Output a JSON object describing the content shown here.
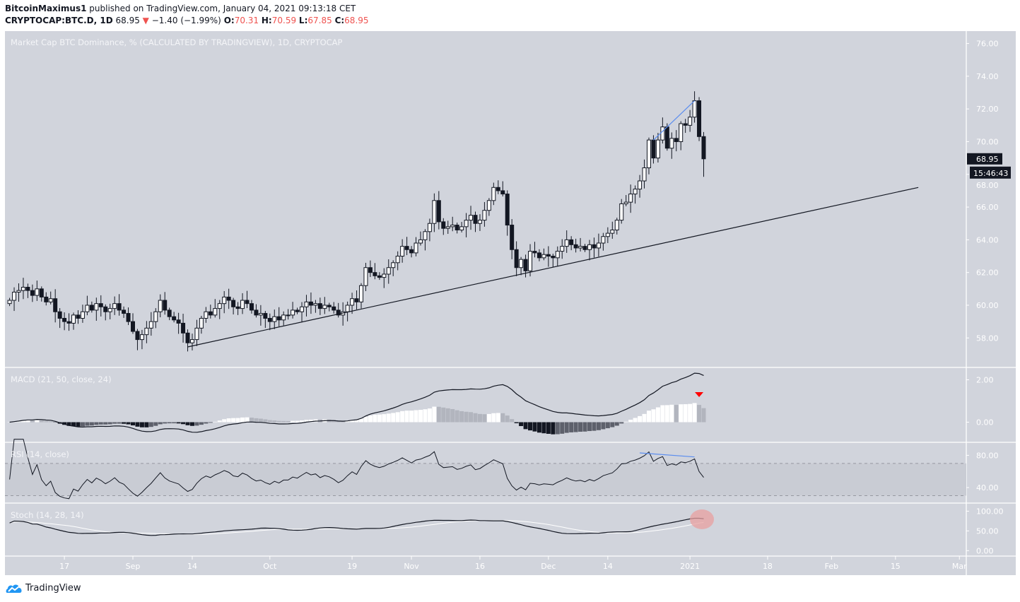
{
  "header": {
    "author": "BitcoinMaximus1",
    "published": "published on TradingView.com, January 04, 2021 09:13:18 CET",
    "symbol": "CRYPTOCAP:BTC.D, 1D",
    "last": "68.95",
    "change": "−1.40 (−1.99%)",
    "open_label": "O:",
    "open": "70.31",
    "high_label": "H:",
    "high": "70.59",
    "low_label": "L:",
    "low": "67.85",
    "close_label": "C:",
    "close": "68.95",
    "down_icon": "triangle-down-icon"
  },
  "footer": {
    "brand": "TradingView",
    "logo_icon": "tradingview-cloud-icon"
  },
  "colors": {
    "pane_bg": "#d1d4dc",
    "up": "#ffffff",
    "down": "#131722",
    "accent_blue": "#5b8def",
    "signal_red": "#ff0000",
    "highlight": "#e8a0a0",
    "price_label_bg": "#131722"
  },
  "chart_data": {
    "type": "candlestick",
    "title": "Market Cap BTC Dominance, % (CALCULATED BY TRADINGVIEW), 1D, CRYPTOCAP",
    "ylim": [
      56.5,
      76.5
    ],
    "yticks": [
      "58.00",
      "60.00",
      "62.00",
      "64.00",
      "66.00",
      "68.00",
      "70.00",
      "72.00",
      "74.00",
      "76.00"
    ],
    "last_price_label": "68.95",
    "countdown_label": "15:46:43",
    "xticks": [
      {
        "label": "17",
        "date": "2020-08-17"
      },
      {
        "label": "Sep",
        "date": "2020-09-01"
      },
      {
        "label": "14",
        "date": "2020-09-14"
      },
      {
        "label": "Oct",
        "date": "2020-10-01"
      },
      {
        "label": "19",
        "date": "2020-10-19"
      },
      {
        "label": "Nov",
        "date": "2020-11-01"
      },
      {
        "label": "16",
        "date": "2020-11-16"
      },
      {
        "label": "Dec",
        "date": "2020-12-01"
      },
      {
        "label": "14",
        "date": "2020-12-14"
      },
      {
        "label": "2021",
        "date": "2021-01-01"
      },
      {
        "label": "18",
        "date": "2021-01-18"
      },
      {
        "label": "Feb",
        "date": "2021-02-01"
      },
      {
        "label": "15",
        "date": "2021-02-15"
      },
      {
        "label": "Mar",
        "date": "2021-03-01"
      }
    ],
    "last_candle": {
      "date": "2021-01-04",
      "open": 70.31,
      "high": 70.59,
      "low": 67.85,
      "close": 68.95
    },
    "closes": [
      [
        "2020-08-05",
        60.3
      ],
      [
        "2020-08-06",
        60.8
      ],
      [
        "2020-08-07",
        60.9
      ],
      [
        "2020-08-08",
        61.1
      ],
      [
        "2020-08-09",
        60.9
      ],
      [
        "2020-08-10",
        60.6
      ],
      [
        "2020-08-11",
        61.0
      ],
      [
        "2020-08-12",
        60.5
      ],
      [
        "2020-08-13",
        60.2
      ],
      [
        "2020-08-14",
        60.4
      ],
      [
        "2020-08-15",
        59.6
      ],
      [
        "2020-08-16",
        59.2
      ],
      [
        "2020-08-17",
        59.0
      ],
      [
        "2020-08-18",
        58.9
      ],
      [
        "2020-08-19",
        59.4
      ],
      [
        "2020-08-20",
        59.2
      ],
      [
        "2020-08-21",
        59.6
      ],
      [
        "2020-08-22",
        60.0
      ],
      [
        "2020-08-23",
        59.7
      ],
      [
        "2020-08-24",
        60.1
      ],
      [
        "2020-08-25",
        59.9
      ],
      [
        "2020-08-26",
        59.6
      ],
      [
        "2020-08-27",
        59.8
      ],
      [
        "2020-08-28",
        60.1
      ],
      [
        "2020-08-29",
        59.7
      ],
      [
        "2020-08-30",
        59.5
      ],
      [
        "2020-08-31",
        59.0
      ],
      [
        "2020-09-01",
        58.4
      ],
      [
        "2020-09-02",
        57.9
      ],
      [
        "2020-09-03",
        58.2
      ],
      [
        "2020-09-04",
        58.6
      ],
      [
        "2020-09-05",
        59.0
      ],
      [
        "2020-09-06",
        59.6
      ],
      [
        "2020-09-07",
        60.3
      ],
      [
        "2020-09-08",
        59.7
      ],
      [
        "2020-09-09",
        59.3
      ],
      [
        "2020-09-10",
        59.1
      ],
      [
        "2020-09-11",
        58.9
      ],
      [
        "2020-09-12",
        58.3
      ],
      [
        "2020-09-13",
        57.7
      ],
      [
        "2020-09-14",
        57.9
      ],
      [
        "2020-09-15",
        58.6
      ],
      [
        "2020-09-16",
        59.2
      ],
      [
        "2020-09-17",
        59.6
      ],
      [
        "2020-09-18",
        59.4
      ],
      [
        "2020-09-19",
        59.8
      ],
      [
        "2020-09-20",
        60.1
      ],
      [
        "2020-09-21",
        60.5
      ],
      [
        "2020-09-22",
        60.3
      ],
      [
        "2020-09-23",
        59.9
      ],
      [
        "2020-09-24",
        59.8
      ],
      [
        "2020-09-25",
        60.3
      ],
      [
        "2020-09-26",
        60.1
      ],
      [
        "2020-09-27",
        59.7
      ],
      [
        "2020-09-28",
        59.4
      ],
      [
        "2020-09-29",
        59.5
      ],
      [
        "2020-09-30",
        59.2
      ],
      [
        "2020-10-01",
        59.0
      ],
      [
        "2020-10-02",
        59.3
      ],
      [
        "2020-10-03",
        59.1
      ],
      [
        "2020-10-04",
        59.4
      ],
      [
        "2020-10-05",
        59.4
      ],
      [
        "2020-10-06",
        59.7
      ],
      [
        "2020-10-07",
        59.6
      ],
      [
        "2020-10-08",
        59.9
      ],
      [
        "2020-10-09",
        60.2
      ],
      [
        "2020-10-10",
        60.0
      ],
      [
        "2020-10-11",
        60.1
      ],
      [
        "2020-10-12",
        59.8
      ],
      [
        "2020-10-13",
        60.0
      ],
      [
        "2020-10-14",
        59.9
      ],
      [
        "2020-10-15",
        59.7
      ],
      [
        "2020-10-16",
        59.4
      ],
      [
        "2020-10-17",
        59.6
      ],
      [
        "2020-10-18",
        60.0
      ],
      [
        "2020-10-19",
        60.4
      ],
      [
        "2020-10-20",
        60.2
      ],
      [
        "2020-10-21",
        61.2
      ],
      [
        "2020-10-22",
        62.3
      ],
      [
        "2020-10-23",
        62.0
      ],
      [
        "2020-10-24",
        61.8
      ],
      [
        "2020-10-25",
        61.7
      ],
      [
        "2020-10-26",
        61.9
      ],
      [
        "2020-10-27",
        62.3
      ],
      [
        "2020-10-28",
        62.6
      ],
      [
        "2020-10-29",
        63.0
      ],
      [
        "2020-10-30",
        63.6
      ],
      [
        "2020-10-31",
        63.4
      ],
      [
        "2020-11-01",
        63.2
      ],
      [
        "2020-11-02",
        63.8
      ],
      [
        "2020-11-03",
        64.0
      ],
      [
        "2020-11-04",
        64.5
      ],
      [
        "2020-11-05",
        65.0
      ],
      [
        "2020-11-06",
        66.4
      ],
      [
        "2020-11-07",
        65.1
      ],
      [
        "2020-11-08",
        64.7
      ],
      [
        "2020-11-09",
        64.8
      ],
      [
        "2020-11-10",
        64.9
      ],
      [
        "2020-11-11",
        64.6
      ],
      [
        "2020-11-12",
        64.8
      ],
      [
        "2020-11-13",
        65.2
      ],
      [
        "2020-11-14",
        65.5
      ],
      [
        "2020-11-15",
        65.0
      ],
      [
        "2020-11-16",
        65.2
      ],
      [
        "2020-11-17",
        65.8
      ],
      [
        "2020-11-18",
        66.4
      ],
      [
        "2020-11-19",
        67.2
      ],
      [
        "2020-11-20",
        67.0
      ],
      [
        "2020-11-21",
        66.8
      ],
      [
        "2020-11-22",
        64.9
      ],
      [
        "2020-11-23",
        63.4
      ],
      [
        "2020-11-24",
        62.3
      ],
      [
        "2020-11-25",
        62.8
      ],
      [
        "2020-11-26",
        62.1
      ],
      [
        "2020-11-27",
        63.3
      ],
      [
        "2020-11-28",
        63.2
      ],
      [
        "2020-11-29",
        62.9
      ],
      [
        "2020-11-30",
        63.1
      ],
      [
        "2020-12-01",
        63.0
      ],
      [
        "2020-12-02",
        62.9
      ],
      [
        "2020-12-03",
        63.3
      ],
      [
        "2020-12-04",
        63.6
      ],
      [
        "2020-12-05",
        64.0
      ],
      [
        "2020-12-06",
        63.7
      ],
      [
        "2020-12-07",
        63.5
      ],
      [
        "2020-12-08",
        63.6
      ],
      [
        "2020-12-09",
        63.4
      ],
      [
        "2020-12-10",
        63.7
      ],
      [
        "2020-12-11",
        63.5
      ],
      [
        "2020-12-12",
        63.8
      ],
      [
        "2020-12-13",
        64.2
      ],
      [
        "2020-12-14",
        64.4
      ],
      [
        "2020-12-15",
        64.6
      ],
      [
        "2020-12-16",
        65.2
      ],
      [
        "2020-12-17",
        66.2
      ],
      [
        "2020-12-18",
        66.3
      ],
      [
        "2020-12-19",
        66.8
      ],
      [
        "2020-12-20",
        67.1
      ],
      [
        "2020-12-21",
        67.6
      ],
      [
        "2020-12-22",
        68.4
      ],
      [
        "2020-12-23",
        70.1
      ],
      [
        "2020-12-24",
        69.0
      ],
      [
        "2020-12-25",
        70.1
      ],
      [
        "2020-12-26",
        70.9
      ],
      [
        "2020-12-27",
        69.6
      ],
      [
        "2020-12-28",
        70.2
      ],
      [
        "2020-12-29",
        70.0
      ],
      [
        "2020-12-30",
        71.1
      ],
      [
        "2020-12-31",
        71.0
      ],
      [
        "2021-01-01",
        71.5
      ],
      [
        "2021-01-02",
        72.5
      ],
      [
        "2021-01-03",
        70.31
      ],
      [
        "2021-01-04",
        68.95
      ]
    ],
    "trendlines": [
      {
        "from": [
          "2020-09-13",
          57.45
        ],
        "to": [
          "2021-02-20",
          67.2
        ],
        "color": "#131722"
      },
      {
        "from": [
          "2020-12-24",
          70.1
        ],
        "to": [
          "2021-01-02",
          72.5
        ],
        "color": "#5b8def"
      }
    ],
    "macd": {
      "title": "MACD (21, 50, close, 24)",
      "fast": 21,
      "slow": 50,
      "signal": 24,
      "ylim": [
        -0.75,
        2.35
      ],
      "yticks": [
        "0.00",
        "2.00"
      ],
      "signal_marker_date": "2021-01-03"
    },
    "rsi": {
      "title": "RSI (14, close)",
      "length": 14,
      "ylim": [
        26,
        90
      ],
      "yticks": [
        "40.00",
        "80.00"
      ],
      "band": [
        30,
        70
      ],
      "divergence": {
        "from": [
          "2020-12-21",
          83
        ],
        "to": [
          "2021-01-02",
          78
        ],
        "color": "#5b8def"
      }
    },
    "stoch": {
      "title": "Stoch (14, 28, 14)",
      "k": 14,
      "k_smooth": 28,
      "d_smooth": 14,
      "ylim": [
        -3,
        108
      ],
      "yticks": [
        "0.00",
        "50.00",
        "100.00"
      ],
      "highlight_date": "2021-01-03"
    }
  }
}
